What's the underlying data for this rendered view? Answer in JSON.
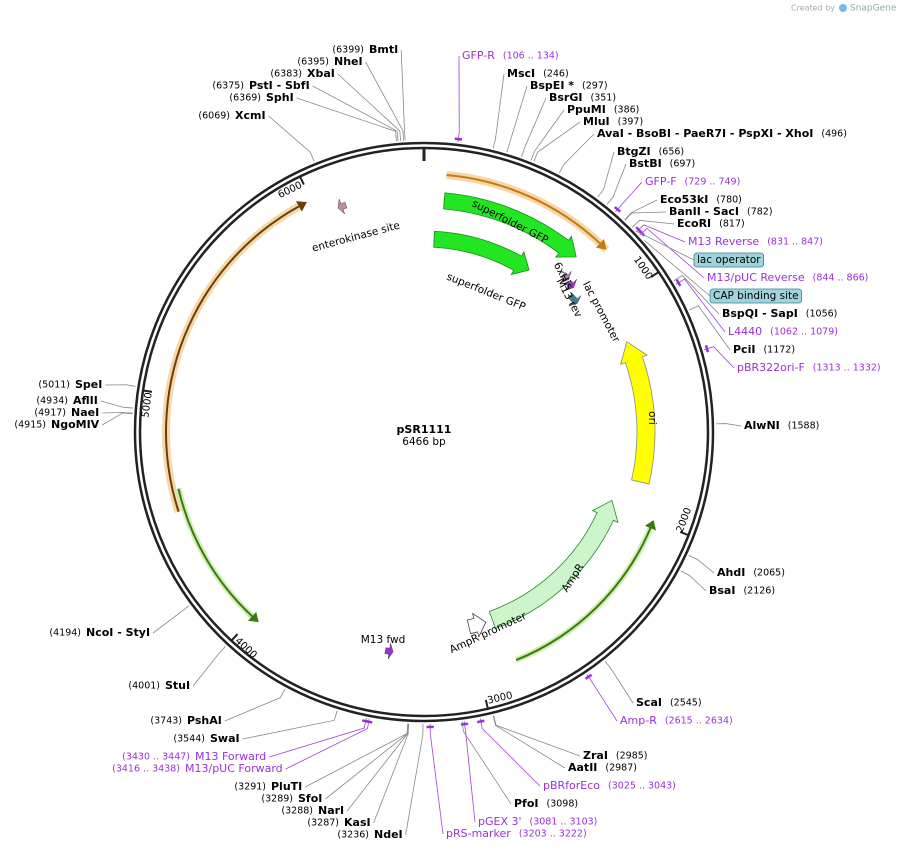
{
  "branding": {
    "created_by": "Created by",
    "app": "SnapGene"
  },
  "plasmid": {
    "name": "pSR1111",
    "length": "6466 bp"
  },
  "ticks": [
    1000,
    2000,
    3000,
    4000,
    5000,
    6000
  ],
  "enzymes": [
    {
      "name": "BmtI",
      "position": "(6399)"
    },
    {
      "name": "NheI",
      "position": "(6395)"
    },
    {
      "name": "XbaI",
      "position": "(6383)"
    },
    {
      "name": "PstI  - SbfI",
      "position": "(6375)"
    },
    {
      "name": "SphI",
      "position": "(6369)"
    },
    {
      "name": "XcmI",
      "position": "(6069)"
    },
    {
      "name": "MscI",
      "position": "(246)"
    },
    {
      "name": "BspEI *",
      "position": "(297)"
    },
    {
      "name": "BsrGI",
      "position": "(351)"
    },
    {
      "name": "PpuMI",
      "position": "(386)"
    },
    {
      "name": "MluI",
      "position": "(397)"
    },
    {
      "name": "AvaI  - BsoBI  - PaeR7I  - PspXI  - XhoI",
      "position": "(496)"
    },
    {
      "name": "BtgZI",
      "position": "(656)"
    },
    {
      "name": "BstBI",
      "position": "(697)"
    },
    {
      "name": "Eco53kI",
      "position": "(780)"
    },
    {
      "name": "BanII  - SacI",
      "position": "(782)"
    },
    {
      "name": "EcoRI",
      "position": "(817)"
    },
    {
      "name": "BspQI  - SapI",
      "position": "(1056)"
    },
    {
      "name": "PciI",
      "position": "(1172)"
    },
    {
      "name": "AlwNI",
      "position": "(1588)"
    },
    {
      "name": "AhdI",
      "position": "(2065)"
    },
    {
      "name": "BsaI",
      "position": "(2126)"
    },
    {
      "name": "ScaI",
      "position": "(2545)"
    },
    {
      "name": "ZraI",
      "position": "(2985)"
    },
    {
      "name": "AatII",
      "position": "(2987)"
    },
    {
      "name": "PfoI",
      "position": "(3098)"
    },
    {
      "name": "NdeI",
      "position": "(3236)"
    },
    {
      "name": "KasI",
      "position": "(3287)"
    },
    {
      "name": "NarI",
      "position": "(3288)"
    },
    {
      "name": "SfoI",
      "position": "(3289)"
    },
    {
      "name": "PluTI",
      "position": "(3291)"
    },
    {
      "name": "SwaI",
      "position": "(3544)"
    },
    {
      "name": "PshAI",
      "position": "(3743)"
    },
    {
      "name": "StuI",
      "position": "(4001)"
    },
    {
      "name": "NcoI  - StyI",
      "position": "(4194)"
    },
    {
      "name": "SpeI",
      "position": "(5011)"
    },
    {
      "name": "AflII",
      "position": "(4934)"
    },
    {
      "name": "NaeI",
      "position": "(4917)"
    },
    {
      "name": "NgoMIV",
      "position": "(4915)"
    }
  ],
  "primers": [
    {
      "name": "GFP-R",
      "range": "(106 .. 134)"
    },
    {
      "name": "GFP-F",
      "range": "(729 .. 749)"
    },
    {
      "name": "M13 Reverse",
      "range": "(831 .. 847)"
    },
    {
      "name": "M13/pUC Reverse",
      "range": "(844 .. 866)"
    },
    {
      "name": "L4440",
      "range": "(1062 .. 1079)"
    },
    {
      "name": "pBR322ori-F",
      "range": "(1313 .. 1332)"
    },
    {
      "name": "Amp-R",
      "range": "(2615 .. 2634)"
    },
    {
      "name": "pBRforEco",
      "range": "(3025 .. 3043)"
    },
    {
      "name": "pGEX 3'",
      "range": "(3081 .. 3103)"
    },
    {
      "name": "pRS-marker",
      "range": "(3203 .. 3222)"
    },
    {
      "name": "M13 Forward",
      "range": "(3430 .. 3447)"
    },
    {
      "name": "M13/pUC Forward",
      "range": "(3416 .. 3438)"
    }
  ],
  "boxed_features": [
    "lac operator",
    "CAP binding site"
  ],
  "features": [
    "superfolder GFP",
    "superfolder GFP",
    "6xHis",
    "M13 rev",
    "lac promoter",
    "ori",
    "AmpR",
    "AmpR promoter",
    "M13 fwd",
    "enterokinase site"
  ]
}
